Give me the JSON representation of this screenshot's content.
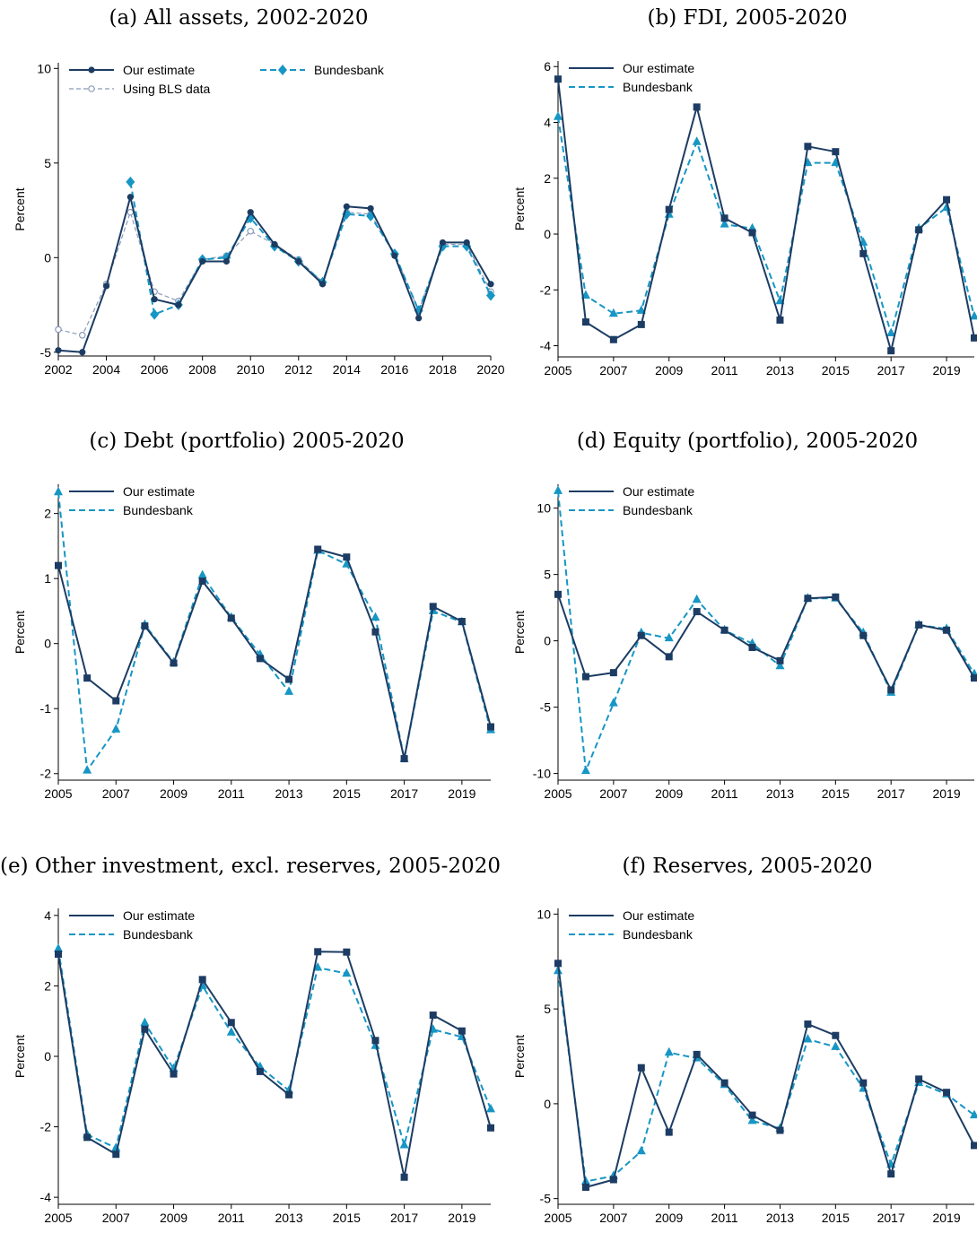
{
  "colors": {
    "estimate": "#1c3c63",
    "bundesbank": "#1696c4",
    "bls": "#8a9ab8"
  },
  "chart_data": [
    {
      "type": "line",
      "title": "(a) All assets, 2002-2020",
      "ylabel": "Percent",
      "ylim": [
        -5.2,
        10.3
      ],
      "yticks": [
        -5,
        0,
        5,
        10
      ],
      "xlim": [
        2002,
        2020
      ],
      "xticks": [
        2002,
        2004,
        2006,
        2008,
        2010,
        2012,
        2014,
        2016,
        2018,
        2020
      ],
      "legend_columns": 2,
      "series": [
        {
          "name": "Our estimate",
          "style": "estimate",
          "marker": "circle",
          "x": [
            2002,
            2003,
            2004,
            2005,
            2006,
            2007,
            2008,
            2009,
            2010,
            2011,
            2012,
            2013,
            2014,
            2015,
            2016,
            2017,
            2018,
            2019,
            2020
          ],
          "values": [
            -4.9,
            -5.0,
            -1.5,
            3.2,
            -2.2,
            -2.5,
            -0.2,
            -0.2,
            2.4,
            0.7,
            -0.2,
            -1.4,
            2.7,
            2.6,
            0.1,
            -3.2,
            0.8,
            0.8,
            -1.4
          ]
        },
        {
          "name": "Bundesbank",
          "style": "bundesbank",
          "marker": "diamond",
          "x": [
            2005,
            2006,
            2007,
            2008,
            2009,
            2010,
            2011,
            2012,
            2013,
            2014,
            2015,
            2016,
            2017,
            2018,
            2019,
            2020
          ],
          "values": [
            4.0,
            -3.0,
            -2.5,
            -0.1,
            0.0,
            2.1,
            0.6,
            -0.2,
            -1.3,
            2.3,
            2.2,
            0.2,
            -2.8,
            0.6,
            0.6,
            -2.0
          ]
        },
        {
          "name": "Using BLS data",
          "style": "bls",
          "marker": "hollow-circle",
          "x": [
            2002,
            2003,
            2004,
            2005,
            2006,
            2007,
            2008,
            2009,
            2010,
            2011,
            2012,
            2013,
            2014,
            2015,
            2016,
            2017,
            2018,
            2019,
            2020
          ],
          "values": [
            -3.8,
            -4.1,
            -1.4,
            2.4,
            -1.8,
            -2.3,
            -0.1,
            0.1,
            1.4,
            0.7,
            -0.1,
            -1.3,
            2.4,
            2.3,
            0.2,
            -2.8,
            0.7,
            0.7,
            -1.8
          ]
        }
      ]
    },
    {
      "type": "line",
      "title": "(b) FDI, 2005-2020",
      "ylabel": "Percent",
      "ylim": [
        -4.4,
        6.2
      ],
      "yticks": [
        -4,
        -2,
        0,
        2,
        4,
        6
      ],
      "xlim": [
        2005,
        2020
      ],
      "xticks": [
        2005,
        2007,
        2009,
        2011,
        2013,
        2015,
        2017,
        2019
      ],
      "legend_columns": 1,
      "series": [
        {
          "name": "Our estimate",
          "style": "estimate",
          "marker": "square",
          "x": [
            2005,
            2006,
            2007,
            2008,
            2009,
            2010,
            2011,
            2012,
            2013,
            2014,
            2015,
            2016,
            2017,
            2018,
            2019,
            2020
          ],
          "values": [
            5.55,
            -3.15,
            -3.78,
            -3.24,
            0.88,
            4.55,
            0.57,
            0.05,
            -3.08,
            3.14,
            2.95,
            -0.7,
            -4.18,
            0.15,
            1.23,
            -3.72
          ]
        },
        {
          "name": "Bundesbank",
          "style": "bundesbank",
          "marker": "triangle",
          "x": [
            2005,
            2006,
            2007,
            2008,
            2009,
            2010,
            2011,
            2012,
            2013,
            2014,
            2015,
            2016,
            2017,
            2018,
            2019,
            2020
          ],
          "values": [
            4.2,
            -2.2,
            -2.85,
            -2.74,
            0.7,
            3.3,
            0.35,
            0.2,
            -2.4,
            2.55,
            2.55,
            -0.3,
            -3.55,
            0.2,
            0.95,
            -2.95
          ]
        }
      ]
    },
    {
      "type": "line",
      "title": "(c) Debt (portfolio) 2005-2020",
      "ylabel": "Percent",
      "ylim": [
        -2.1,
        2.45
      ],
      "yticks": [
        -2,
        -1,
        0,
        1,
        2
      ],
      "xlim": [
        2005,
        2020
      ],
      "xticks": [
        2005,
        2007,
        2009,
        2011,
        2013,
        2015,
        2017,
        2019
      ],
      "legend_columns": 1,
      "series": [
        {
          "name": "Our estimate",
          "style": "estimate",
          "marker": "square",
          "x": [
            2005,
            2006,
            2007,
            2008,
            2009,
            2010,
            2011,
            2012,
            2013,
            2014,
            2015,
            2016,
            2017,
            2018,
            2019,
            2020
          ],
          "values": [
            1.2,
            -0.53,
            -0.88,
            0.27,
            -0.3,
            0.96,
            0.39,
            -0.23,
            -0.55,
            1.45,
            1.33,
            0.18,
            -1.77,
            0.57,
            0.34,
            -1.28
          ]
        },
        {
          "name": "Bundesbank",
          "style": "bundesbank",
          "marker": "triangle",
          "x": [
            2005,
            2006,
            2007,
            2008,
            2009,
            2010,
            2011,
            2012,
            2013,
            2014,
            2015,
            2016,
            2017,
            2018,
            2019,
            2020
          ],
          "values": [
            2.33,
            -1.95,
            -1.32,
            0.29,
            -0.29,
            1.05,
            0.4,
            -0.17,
            -0.74,
            1.43,
            1.22,
            0.4,
            -1.77,
            0.5,
            0.33,
            -1.33
          ]
        }
      ]
    },
    {
      "type": "line",
      "title": "(d) Equity (portfolio), 2005-2020",
      "ylabel": "Percent",
      "ylim": [
        -10.5,
        11.8
      ],
      "yticks": [
        -10,
        -5,
        0,
        5,
        10
      ],
      "xlim": [
        2005,
        2020
      ],
      "xticks": [
        2005,
        2007,
        2009,
        2011,
        2013,
        2015,
        2017,
        2019
      ],
      "legend_columns": 1,
      "series": [
        {
          "name": "Our estimate",
          "style": "estimate",
          "marker": "square",
          "x": [
            2005,
            2006,
            2007,
            2008,
            2009,
            2010,
            2011,
            2012,
            2013,
            2014,
            2015,
            2016,
            2017,
            2018,
            2019,
            2020
          ],
          "values": [
            3.5,
            -2.7,
            -2.4,
            0.4,
            -1.2,
            2.2,
            0.8,
            -0.5,
            -1.5,
            3.2,
            3.3,
            0.4,
            -3.7,
            1.2,
            0.8,
            -2.8
          ]
        },
        {
          "name": "Bundesbank",
          "style": "bundesbank",
          "marker": "triangle",
          "x": [
            2005,
            2006,
            2007,
            2008,
            2009,
            2010,
            2011,
            2012,
            2013,
            2014,
            2015,
            2016,
            2017,
            2018,
            2019,
            2020
          ],
          "values": [
            11.3,
            -9.8,
            -4.7,
            0.6,
            0.2,
            3.1,
            0.8,
            -0.2,
            -1.9,
            3.2,
            3.2,
            0.6,
            -3.9,
            1.2,
            0.9,
            -2.5
          ]
        }
      ]
    },
    {
      "type": "line",
      "title": "(e) Other investment, excl. reserves, 2005-2020",
      "ylabel": "Percent",
      "ylim": [
        -4.2,
        4.2
      ],
      "yticks": [
        -4,
        -2,
        0,
        2,
        4
      ],
      "xlim": [
        2005,
        2020
      ],
      "xticks": [
        2005,
        2007,
        2009,
        2011,
        2013,
        2015,
        2017,
        2019
      ],
      "legend_columns": 1,
      "series": [
        {
          "name": "Our estimate",
          "style": "estimate",
          "marker": "square",
          "x": [
            2005,
            2006,
            2007,
            2008,
            2009,
            2010,
            2011,
            2012,
            2013,
            2014,
            2015,
            2016,
            2017,
            2018,
            2019,
            2020
          ],
          "values": [
            2.9,
            -2.3,
            -2.78,
            0.77,
            -0.5,
            2.18,
            0.96,
            -0.43,
            -1.09,
            2.97,
            2.96,
            0.45,
            -3.43,
            1.17,
            0.72,
            -2.03
          ]
        },
        {
          "name": "Bundesbank",
          "style": "bundesbank",
          "marker": "triangle",
          "x": [
            2005,
            2006,
            2007,
            2008,
            2009,
            2010,
            2011,
            2012,
            2013,
            2014,
            2015,
            2016,
            2017,
            2018,
            2019,
            2020
          ],
          "values": [
            3.05,
            -2.22,
            -2.6,
            0.95,
            -0.35,
            2.0,
            0.68,
            -0.3,
            -0.97,
            2.52,
            2.35,
            0.3,
            -2.52,
            0.76,
            0.55,
            -1.5
          ]
        }
      ]
    },
    {
      "type": "line",
      "title": "(f) Reserves, 2005-2020",
      "ylabel": "Percent",
      "ylim": [
        -5.3,
        10.3
      ],
      "yticks": [
        -5,
        0,
        5,
        10
      ],
      "xlim": [
        2005,
        2020
      ],
      "xticks": [
        2005,
        2007,
        2009,
        2011,
        2013,
        2015,
        2017,
        2019
      ],
      "legend_columns": 1,
      "series": [
        {
          "name": "Our estimate",
          "style": "estimate",
          "marker": "square",
          "x": [
            2005,
            2006,
            2007,
            2008,
            2009,
            2010,
            2011,
            2012,
            2013,
            2014,
            2015,
            2016,
            2017,
            2018,
            2019,
            2020
          ],
          "values": [
            7.4,
            -4.4,
            -4.0,
            1.9,
            -1.5,
            2.6,
            1.1,
            -0.6,
            -1.4,
            4.2,
            3.6,
            1.1,
            -3.7,
            1.3,
            0.6,
            -2.2
          ]
        },
        {
          "name": "Bundesbank",
          "style": "bundesbank",
          "marker": "triangle",
          "x": [
            2005,
            2006,
            2007,
            2008,
            2009,
            2010,
            2011,
            2012,
            2013,
            2014,
            2015,
            2016,
            2017,
            2018,
            2019,
            2020
          ],
          "values": [
            7.0,
            -4.1,
            -3.8,
            -2.5,
            2.7,
            2.4,
            1.0,
            -0.9,
            -1.3,
            3.4,
            3.0,
            0.8,
            -3.2,
            1.1,
            0.5,
            -0.6
          ]
        }
      ]
    }
  ]
}
